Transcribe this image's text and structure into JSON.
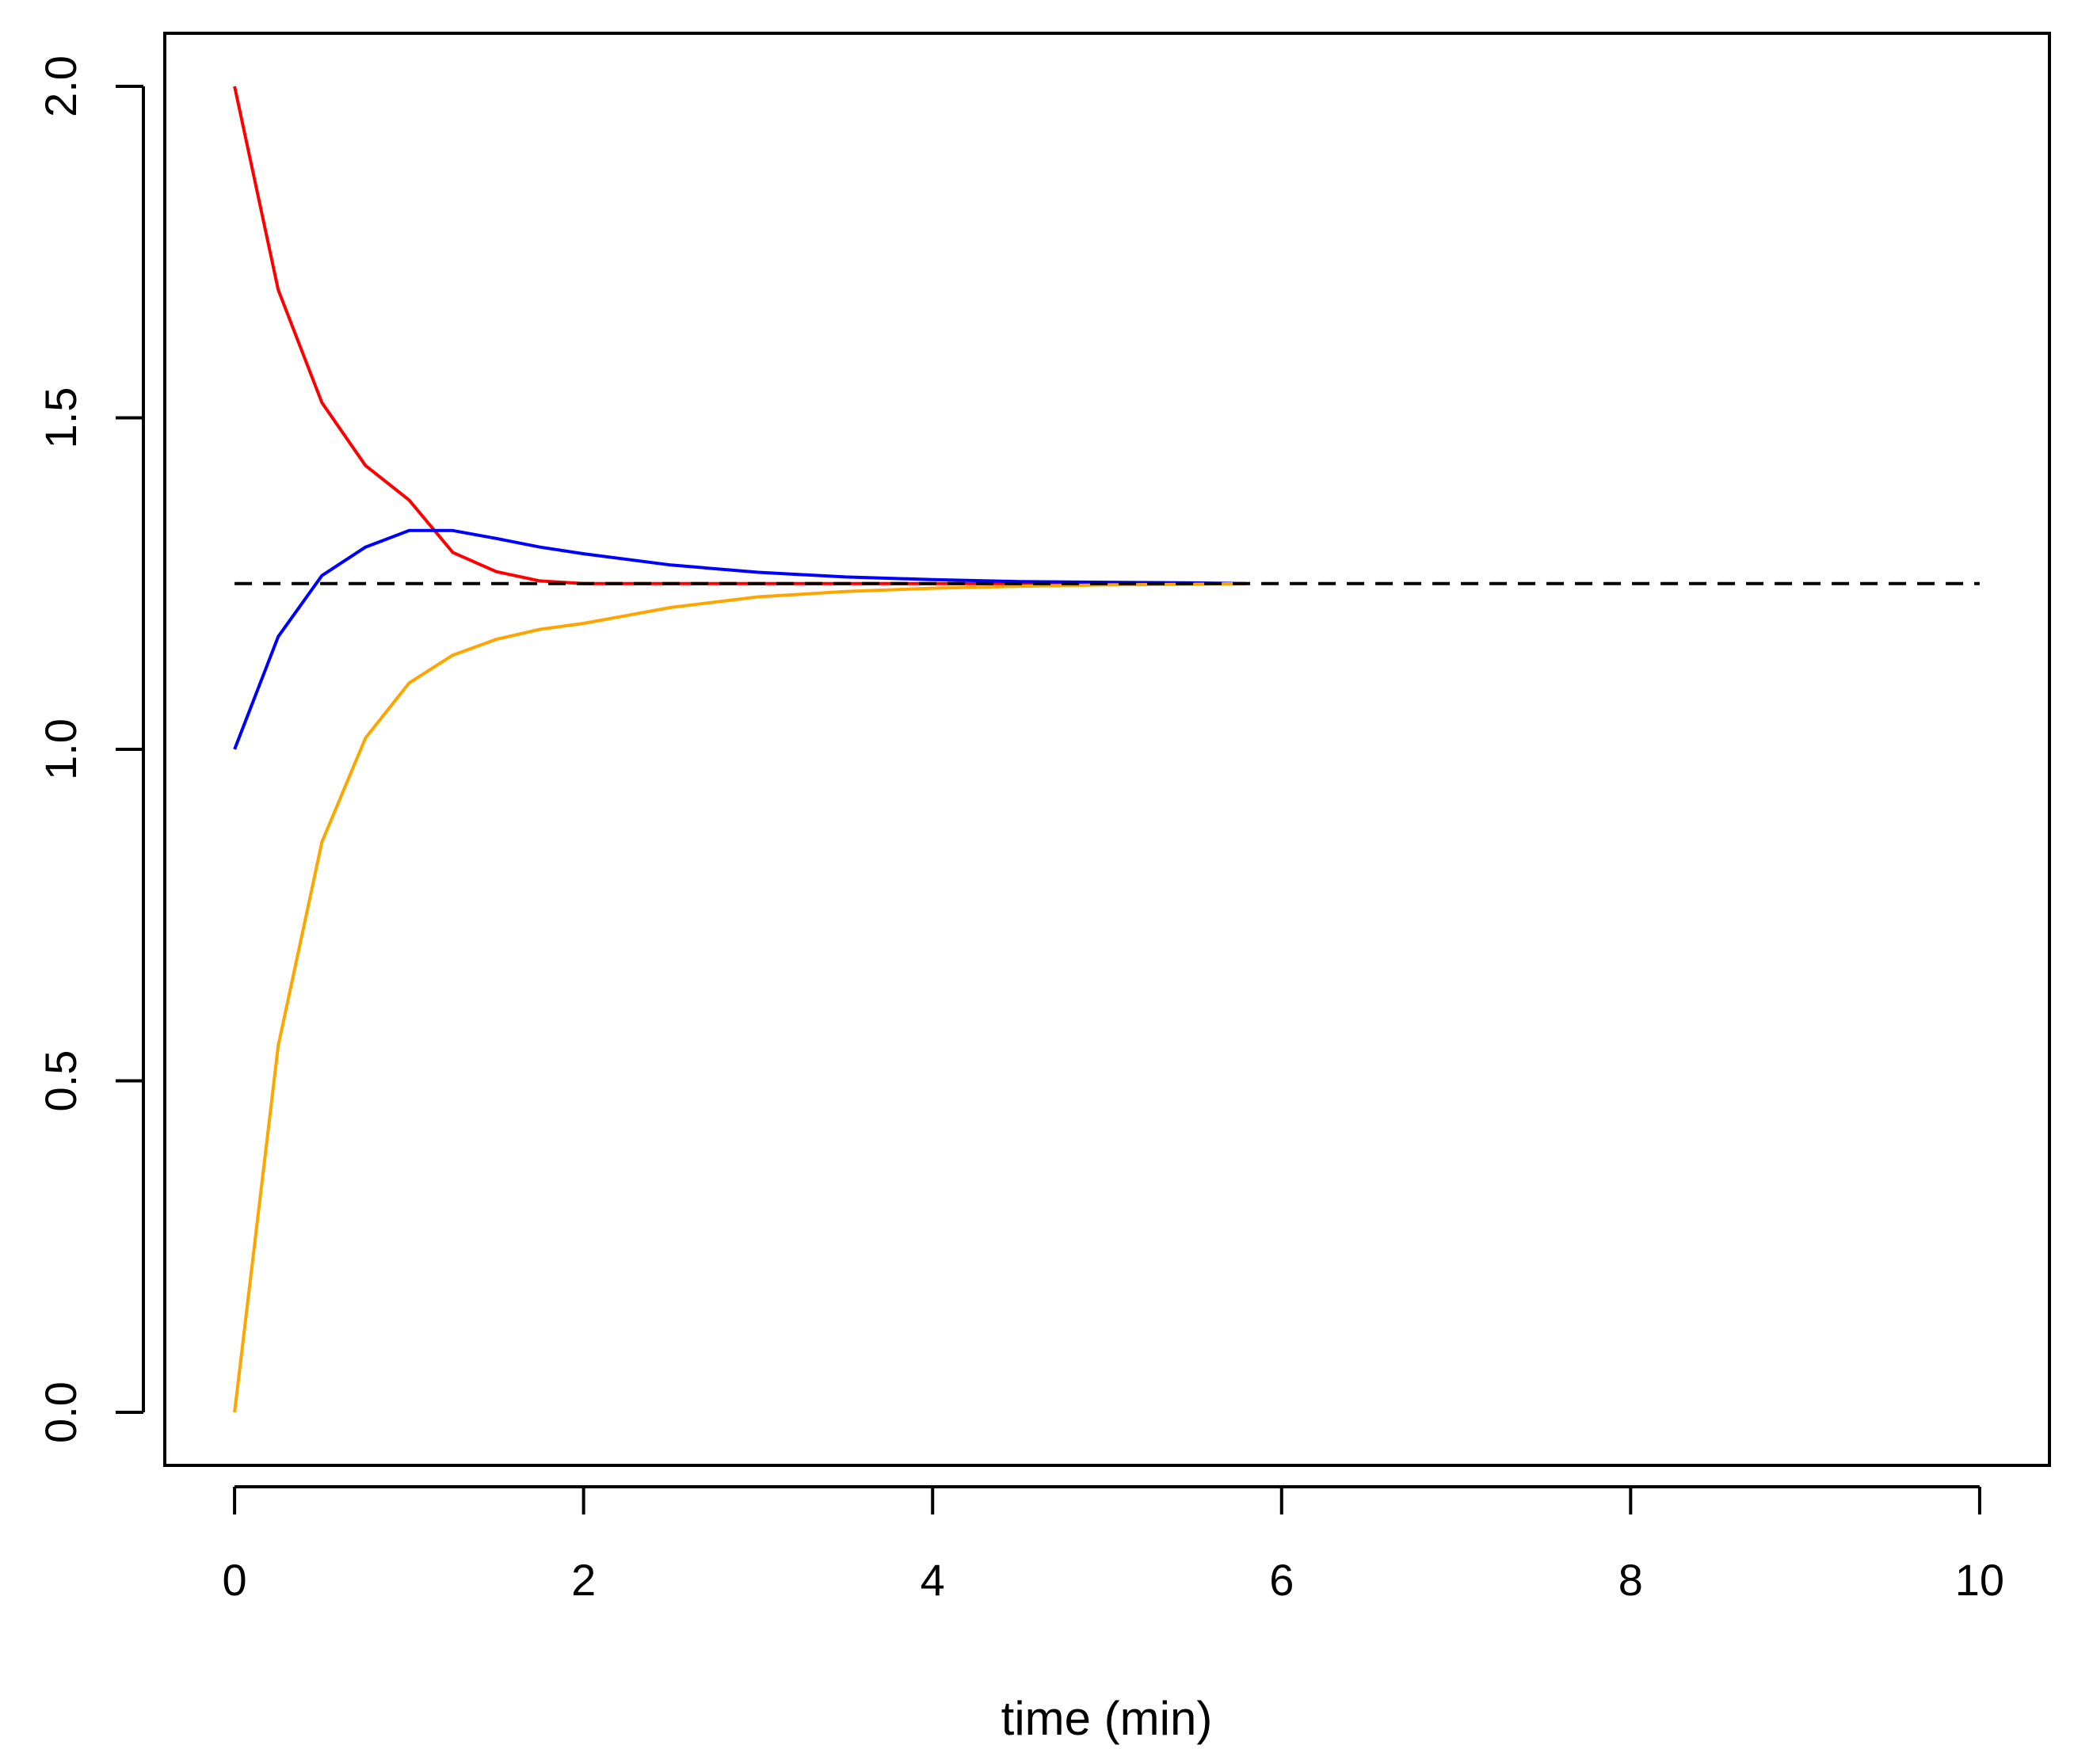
{
  "chart_data": {
    "type": "line",
    "title": "",
    "xlabel": "time (min)",
    "ylabel": "",
    "xlim": [
      -0.4,
      10.4
    ],
    "ylim": [
      -0.08,
      2.08
    ],
    "x_ticks": [
      0,
      2,
      4,
      6,
      8,
      10
    ],
    "y_ticks": [
      0.0,
      0.5,
      1.0,
      1.5,
      2.0
    ],
    "x_tick_labels": [
      "0",
      "2",
      "4",
      "6",
      "8",
      "10"
    ],
    "y_tick_labels": [
      "0.0",
      "0.5",
      "1.0",
      "1.5",
      "2.0"
    ],
    "grid": false,
    "legend": "none",
    "x": [
      0,
      0.25,
      0.5,
      0.75,
      1.0,
      1.25,
      1.5,
      1.75,
      2.0,
      2.5,
      3.0,
      3.5,
      4.0,
      4.5,
      5.0,
      5.5,
      5.8
    ],
    "series": [
      {
        "color": "#ff0000",
        "style": "solid",
        "values": [
          2.0,
          1.693,
          1.523,
          1.428,
          1.376,
          1.297,
          1.268,
          1.254,
          1.25,
          1.25,
          1.25,
          1.25,
          1.25,
          1.25,
          1.25,
          1.25,
          1.25
        ]
      },
      {
        "color": "#0000ff",
        "style": "solid",
        "values": [
          1.0,
          1.17,
          1.262,
          1.305,
          1.33,
          1.33,
          1.318,
          1.305,
          1.295,
          1.278,
          1.267,
          1.26,
          1.256,
          1.253,
          1.252,
          1.251,
          1.25
        ]
      },
      {
        "color": "#ffa500",
        "style": "solid",
        "values": [
          0.0,
          0.553,
          0.86,
          1.017,
          1.1,
          1.142,
          1.166,
          1.181,
          1.19,
          1.214,
          1.23,
          1.238,
          1.243,
          1.246,
          1.248,
          1.249,
          1.25
        ]
      },
      {
        "color": "#000000",
        "style": "dashed",
        "x_range": [
          0,
          10
        ],
        "constant": 1.25
      }
    ]
  }
}
